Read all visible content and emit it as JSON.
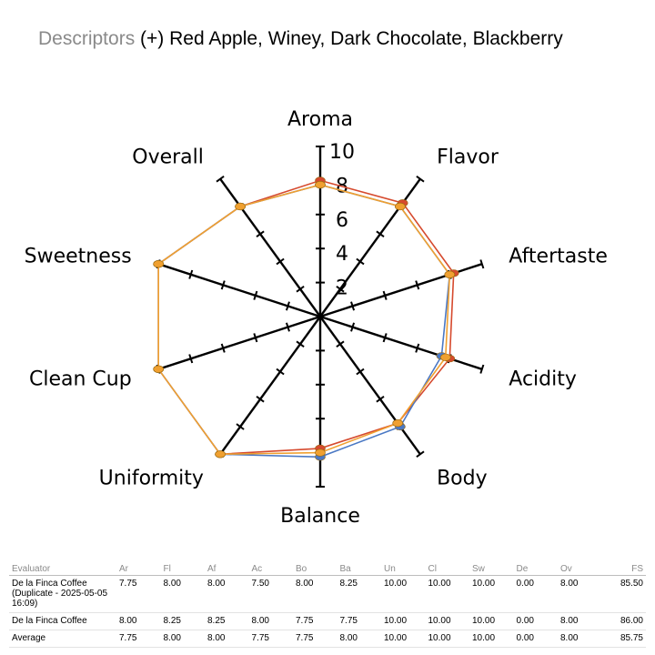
{
  "header": {
    "label": "Descriptors",
    "value": "(+) Red Apple, Winey, Dark Chocolate, Blackberry"
  },
  "chart_data": {
    "type": "radar",
    "title": "",
    "axes": [
      "Aroma",
      "Flavor",
      "Aftertaste",
      "Acidity",
      "Body",
      "Balance",
      "Uniformity",
      "Clean Cup",
      "Sweetness",
      "Overall"
    ],
    "range": [
      0,
      10
    ],
    "tick_labels": [
      "2",
      "4",
      "6",
      "8",
      "10"
    ],
    "series": [
      {
        "color": "#d64a2e",
        "values": [
          8.0,
          8.25,
          8.25,
          8.0,
          7.75,
          7.75,
          10.0,
          10.0,
          10.0,
          8.0
        ]
      },
      {
        "color": "#4a78c4",
        "values": [
          7.75,
          8.0,
          8.0,
          7.5,
          8.0,
          8.25,
          10.0,
          10.0,
          10.0,
          8.0
        ]
      },
      {
        "color": "#f0a030",
        "values": [
          7.75,
          8.0,
          8.0,
          7.75,
          7.75,
          8.0,
          10.0,
          10.0,
          10.0,
          8.0
        ]
      }
    ]
  },
  "table": {
    "headers": [
      "Evaluator",
      "Ar",
      "Fl",
      "Af",
      "Ac",
      "Bo",
      "Ba",
      "Un",
      "Cl",
      "Sw",
      "De",
      "Ov",
      "FS"
    ],
    "rows": [
      [
        "De la Finca Coffee (Duplicate - 2025-05-05 16:09)",
        "7.75",
        "8.00",
        "8.00",
        "7.50",
        "8.00",
        "8.25",
        "10.00",
        "10.00",
        "10.00",
        "0.00",
        "8.00",
        "85.50"
      ],
      [
        "De la Finca Coffee",
        "8.00",
        "8.25",
        "8.25",
        "8.00",
        "7.75",
        "7.75",
        "10.00",
        "10.00",
        "10.00",
        "0.00",
        "8.00",
        "86.00"
      ],
      [
        "Average",
        "7.75",
        "8.00",
        "8.00",
        "7.75",
        "7.75",
        "8.00",
        "10.00",
        "10.00",
        "10.00",
        "0.00",
        "8.00",
        "85.75"
      ]
    ]
  }
}
